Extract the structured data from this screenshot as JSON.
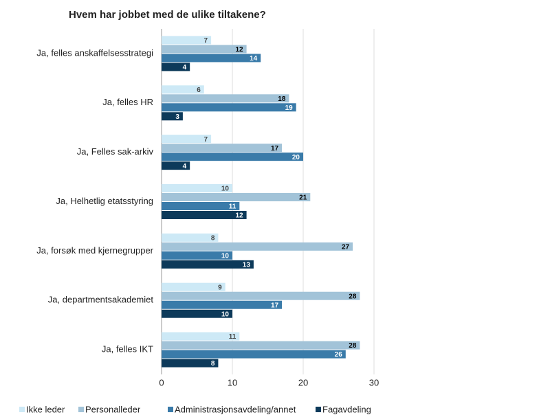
{
  "chart_data": {
    "type": "barh",
    "title": "Hvem har jobbet med de ulike tiltakene?",
    "categories": [
      "Ja, felles anskaffelsesstrategi",
      "Ja, felles HR",
      "Ja, Felles sak-arkiv",
      "Ja, Helhetlig etatsstyring",
      "Ja, forsøk med kjernegrupper",
      "Ja, departmentsakademiet",
      "Ja, felles IKT"
    ],
    "series": [
      {
        "name": "Ikke leder",
        "color": "#cde9f6",
        "values": [
          7,
          6,
          7,
          10,
          8,
          9,
          11
        ]
      },
      {
        "name": "Personalleder",
        "color": "#a2c3d8",
        "values": [
          12,
          18,
          17,
          21,
          27,
          28,
          28
        ]
      },
      {
        "name": "Administrasjonsavdeling/annet",
        "color": "#3a7ba9",
        "values": [
          14,
          19,
          20,
          11,
          10,
          17,
          26
        ]
      },
      {
        "name": "Fagavdeling",
        "color": "#0d3a5a",
        "values": [
          4,
          3,
          4,
          12,
          13,
          10,
          8
        ]
      }
    ],
    "xlim": [
      0,
      30
    ],
    "xticks": [
      0,
      10,
      20,
      30
    ],
    "grid": true,
    "legend": "bottom"
  }
}
